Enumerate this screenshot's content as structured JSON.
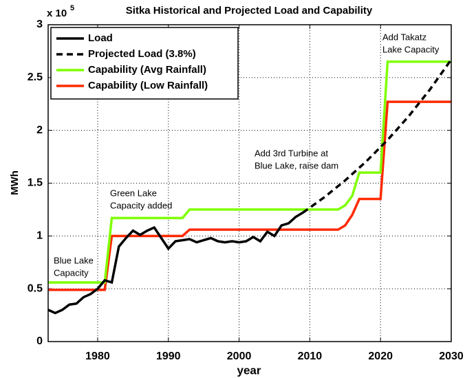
{
  "chart_data": {
    "type": "line",
    "title": "Sitka Historical and Projected Load and Capability",
    "xlabel": "year",
    "ylabel": "MWh",
    "y_multiplier": "x 10",
    "y_multiplier_exp": "5",
    "xlim": [
      1973,
      2030
    ],
    "ylim": [
      0,
      3
    ],
    "xticks": [
      1980,
      1990,
      2000,
      2010,
      2020,
      2030
    ],
    "yticks": [
      0,
      0.5,
      1,
      1.5,
      2,
      2.5,
      3
    ],
    "grid": true,
    "legend": "upper left",
    "series": [
      {
        "name": "Load",
        "color": "#000000",
        "line_style": "solid",
        "x": [
          1973,
          1974,
          1975,
          1976,
          1977,
          1978,
          1979,
          1980,
          1981,
          1982,
          1983,
          1984,
          1985,
          1986,
          1987,
          1988,
          1989,
          1990,
          1991,
          1992,
          1993,
          1994,
          1995,
          1996,
          1997,
          1998,
          1999,
          2000,
          2001,
          2002,
          2003,
          2004,
          2005,
          2006,
          2007,
          2008,
          2009
        ],
        "values": [
          0.3,
          0.27,
          0.3,
          0.35,
          0.36,
          0.42,
          0.45,
          0.5,
          0.58,
          0.56,
          0.9,
          0.98,
          1.05,
          1.01,
          1.05,
          1.08,
          0.98,
          0.88,
          0.95,
          0.96,
          0.97,
          0.94,
          0.96,
          0.98,
          0.95,
          0.94,
          0.95,
          0.94,
          0.95,
          0.99,
          0.95,
          1.04,
          1.0,
          1.1,
          1.12,
          1.18,
          1.22
        ]
      },
      {
        "name": "Projected Load (3.8%)",
        "color": "#000000",
        "line_style": "dashed",
        "x": [
          2009,
          2012,
          2015,
          2018,
          2021,
          2024,
          2027,
          2030
        ],
        "values": [
          1.22,
          1.364,
          1.526,
          1.707,
          1.909,
          2.135,
          2.388,
          2.67
        ]
      },
      {
        "name": "Capability (Avg Rainfall)",
        "color": "#7fff00",
        "line_style": "solid",
        "x": [
          1973,
          1981,
          1982,
          1992,
          1993,
          2014,
          2015,
          2016,
          2017,
          2020,
          2021,
          2030
        ],
        "values": [
          0.56,
          0.56,
          1.17,
          1.17,
          1.25,
          1.25,
          1.29,
          1.38,
          1.6,
          1.6,
          2.65,
          2.65
        ]
      },
      {
        "name": "Capability (Low Rainfall)",
        "color": "#ff2a00",
        "line_style": "solid",
        "x": [
          1973,
          1981,
          1982,
          1992,
          1993,
          2014,
          2015,
          2016,
          2017,
          2020,
          2021,
          2030
        ],
        "values": [
          0.49,
          0.49,
          1.0,
          1.0,
          1.06,
          1.06,
          1.1,
          1.2,
          1.35,
          1.35,
          2.27,
          2.27
        ]
      }
    ],
    "annotations": [
      [
        "Blue Lake",
        "Capacity"
      ],
      [
        "Green Lake",
        "Capacity added"
      ],
      [
        "Add 3rd Turbine at",
        "Blue Lake, raise dam"
      ],
      [
        "Add Takatz",
        "Lake Capacity"
      ]
    ]
  }
}
